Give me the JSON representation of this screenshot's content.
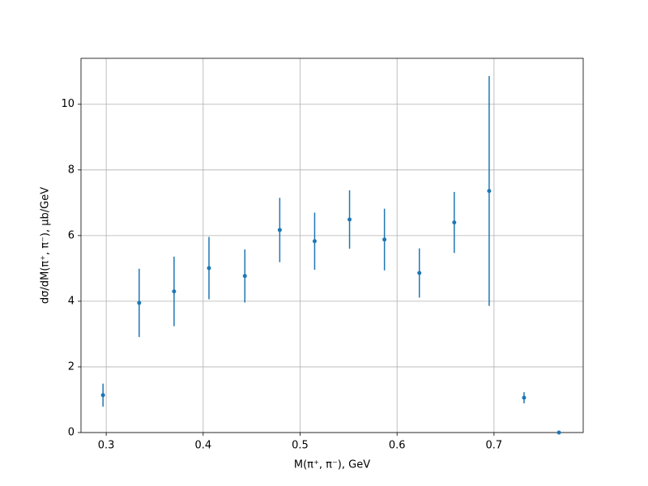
{
  "chart_data": {
    "type": "errorbar",
    "x": [
      0.2967,
      0.334,
      0.37,
      0.406,
      0.443,
      0.479,
      0.515,
      0.551,
      0.587,
      0.623,
      0.659,
      0.695,
      0.731,
      0.767
    ],
    "values": [
      1.14,
      3.95,
      4.3,
      5.01,
      4.77,
      6.17,
      5.83,
      6.49,
      5.88,
      4.86,
      6.4,
      7.36,
      1.06,
      0
    ],
    "errors": [
      0.35,
      1.04,
      1.06,
      0.95,
      0.81,
      0.98,
      0.87,
      0.89,
      0.94,
      0.75,
      0.93,
      3.5,
      0.17,
      0
    ],
    "color": "#1f77b4",
    "xlabel": "M(π⁺, π⁻), GeV",
    "ylabel": "dσ/dM(π⁺, π⁻), μb/GeV",
    "xlim": [
      0.274,
      0.792
    ],
    "ylim": [
      0,
      11.4
    ],
    "xticks": [
      0.3,
      0.4,
      0.5,
      0.6,
      0.7
    ],
    "yticks": [
      0,
      2,
      4,
      6,
      8,
      10
    ],
    "grid": true
  }
}
